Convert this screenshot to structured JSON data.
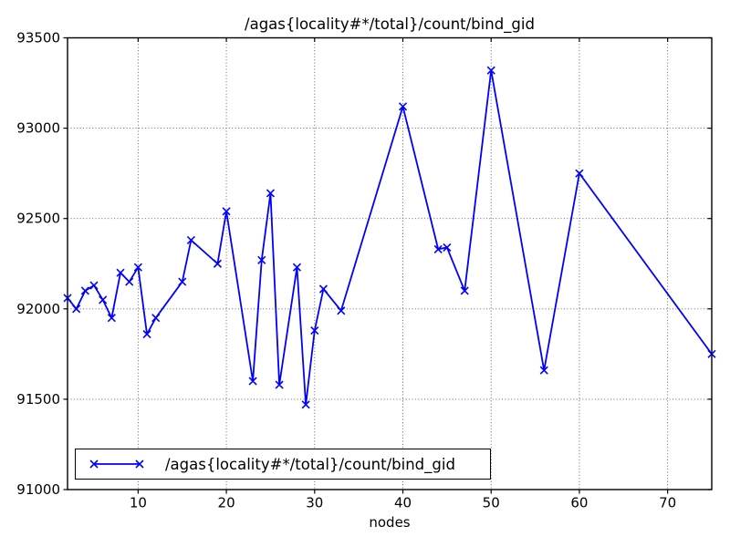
{
  "chart_data": {
    "type": "line",
    "title": "/agas{locality#*/total}/count/bind_gid",
    "xlabel": "nodes",
    "ylabel": "",
    "legend": [
      "/agas{locality#*/total}/count/bind_gid"
    ],
    "legend_position": "lower left",
    "grid": "dotted",
    "line_color": "#0000ff",
    "marker": "x",
    "xlim": [
      2,
      75
    ],
    "ylim": [
      91000,
      93500
    ],
    "xticks": [
      10,
      20,
      30,
      40,
      50,
      60,
      70
    ],
    "yticks": [
      91000,
      91500,
      92000,
      92500,
      93000,
      93500
    ],
    "x": [
      2,
      3,
      4,
      5,
      6,
      7,
      8,
      9,
      10,
      11,
      12,
      15,
      16,
      19,
      20,
      23,
      24,
      25,
      26,
      28,
      29,
      30,
      31,
      33,
      40,
      44,
      45,
      47,
      50,
      56,
      60,
      75
    ],
    "y": [
      92060,
      92000,
      92100,
      92130,
      92050,
      91950,
      92200,
      92150,
      92230,
      91860,
      91950,
      92150,
      92380,
      92250,
      92540,
      91600,
      92270,
      92640,
      91580,
      92230,
      91470,
      91880,
      92110,
      91990,
      93120,
      92330,
      92340,
      92100,
      93320,
      91660,
      92750,
      91750
    ]
  }
}
